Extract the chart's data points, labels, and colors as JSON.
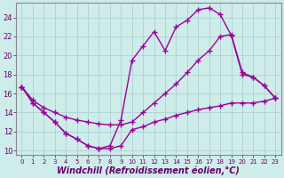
{
  "bg_color": "#ceecea",
  "grid_color": "#aacccc",
  "line_color": "#990099",
  "marker": "+",
  "markersize": 4,
  "linewidth": 1.0,
  "xlabel": "Windchill (Refroidissement éolien,°C)",
  "xlabel_fontsize": 7,
  "ylabel_ticks": [
    10,
    12,
    14,
    16,
    18,
    20,
    22,
    24
  ],
  "xticks": [
    0,
    1,
    2,
    3,
    4,
    5,
    6,
    7,
    8,
    9,
    10,
    11,
    12,
    13,
    14,
    15,
    16,
    17,
    18,
    19,
    20,
    21,
    22,
    23
  ],
  "xlim": [
    -0.5,
    23.5
  ],
  "ylim": [
    9.5,
    25.5
  ],
  "series1_x": [
    0,
    1,
    2,
    3,
    4,
    5,
    6,
    7,
    8,
    9,
    10,
    11,
    12,
    13,
    14,
    15,
    16,
    17,
    18,
    19,
    20,
    21,
    22,
    23
  ],
  "series1_y": [
    16.7,
    15.0,
    14.0,
    13.0,
    11.8,
    11.2,
    10.5,
    10.2,
    10.2,
    10.5,
    12.2,
    12.5,
    13.0,
    13.3,
    13.7,
    14.0,
    14.3,
    14.5,
    14.7,
    15.0,
    15.0,
    15.0,
    15.2,
    15.5
  ],
  "series2_x": [
    0,
    1,
    2,
    3,
    4,
    5,
    6,
    7,
    8,
    9,
    10,
    11,
    12,
    13,
    14,
    15,
    16,
    17,
    18,
    19,
    20,
    21,
    22,
    23
  ],
  "series2_y": [
    16.7,
    15.0,
    14.0,
    13.0,
    11.8,
    11.2,
    10.5,
    10.2,
    10.5,
    13.2,
    19.5,
    21.0,
    22.5,
    20.5,
    23.0,
    23.7,
    24.8,
    25.0,
    24.3,
    22.1,
    18.0,
    17.7,
    16.8,
    15.5
  ],
  "series3_x": [
    0,
    1,
    2,
    3,
    4,
    5,
    6,
    7,
    8,
    9,
    10,
    11,
    12,
    13,
    14,
    15,
    16,
    17,
    18,
    19,
    20,
    21,
    22,
    23
  ],
  "series3_y": [
    16.7,
    15.3,
    14.5,
    14.0,
    13.5,
    13.2,
    13.0,
    12.8,
    12.7,
    12.7,
    13.0,
    14.0,
    15.0,
    16.0,
    17.0,
    18.2,
    19.5,
    20.5,
    22.0,
    22.2,
    18.2,
    17.7,
    16.8,
    15.5
  ]
}
